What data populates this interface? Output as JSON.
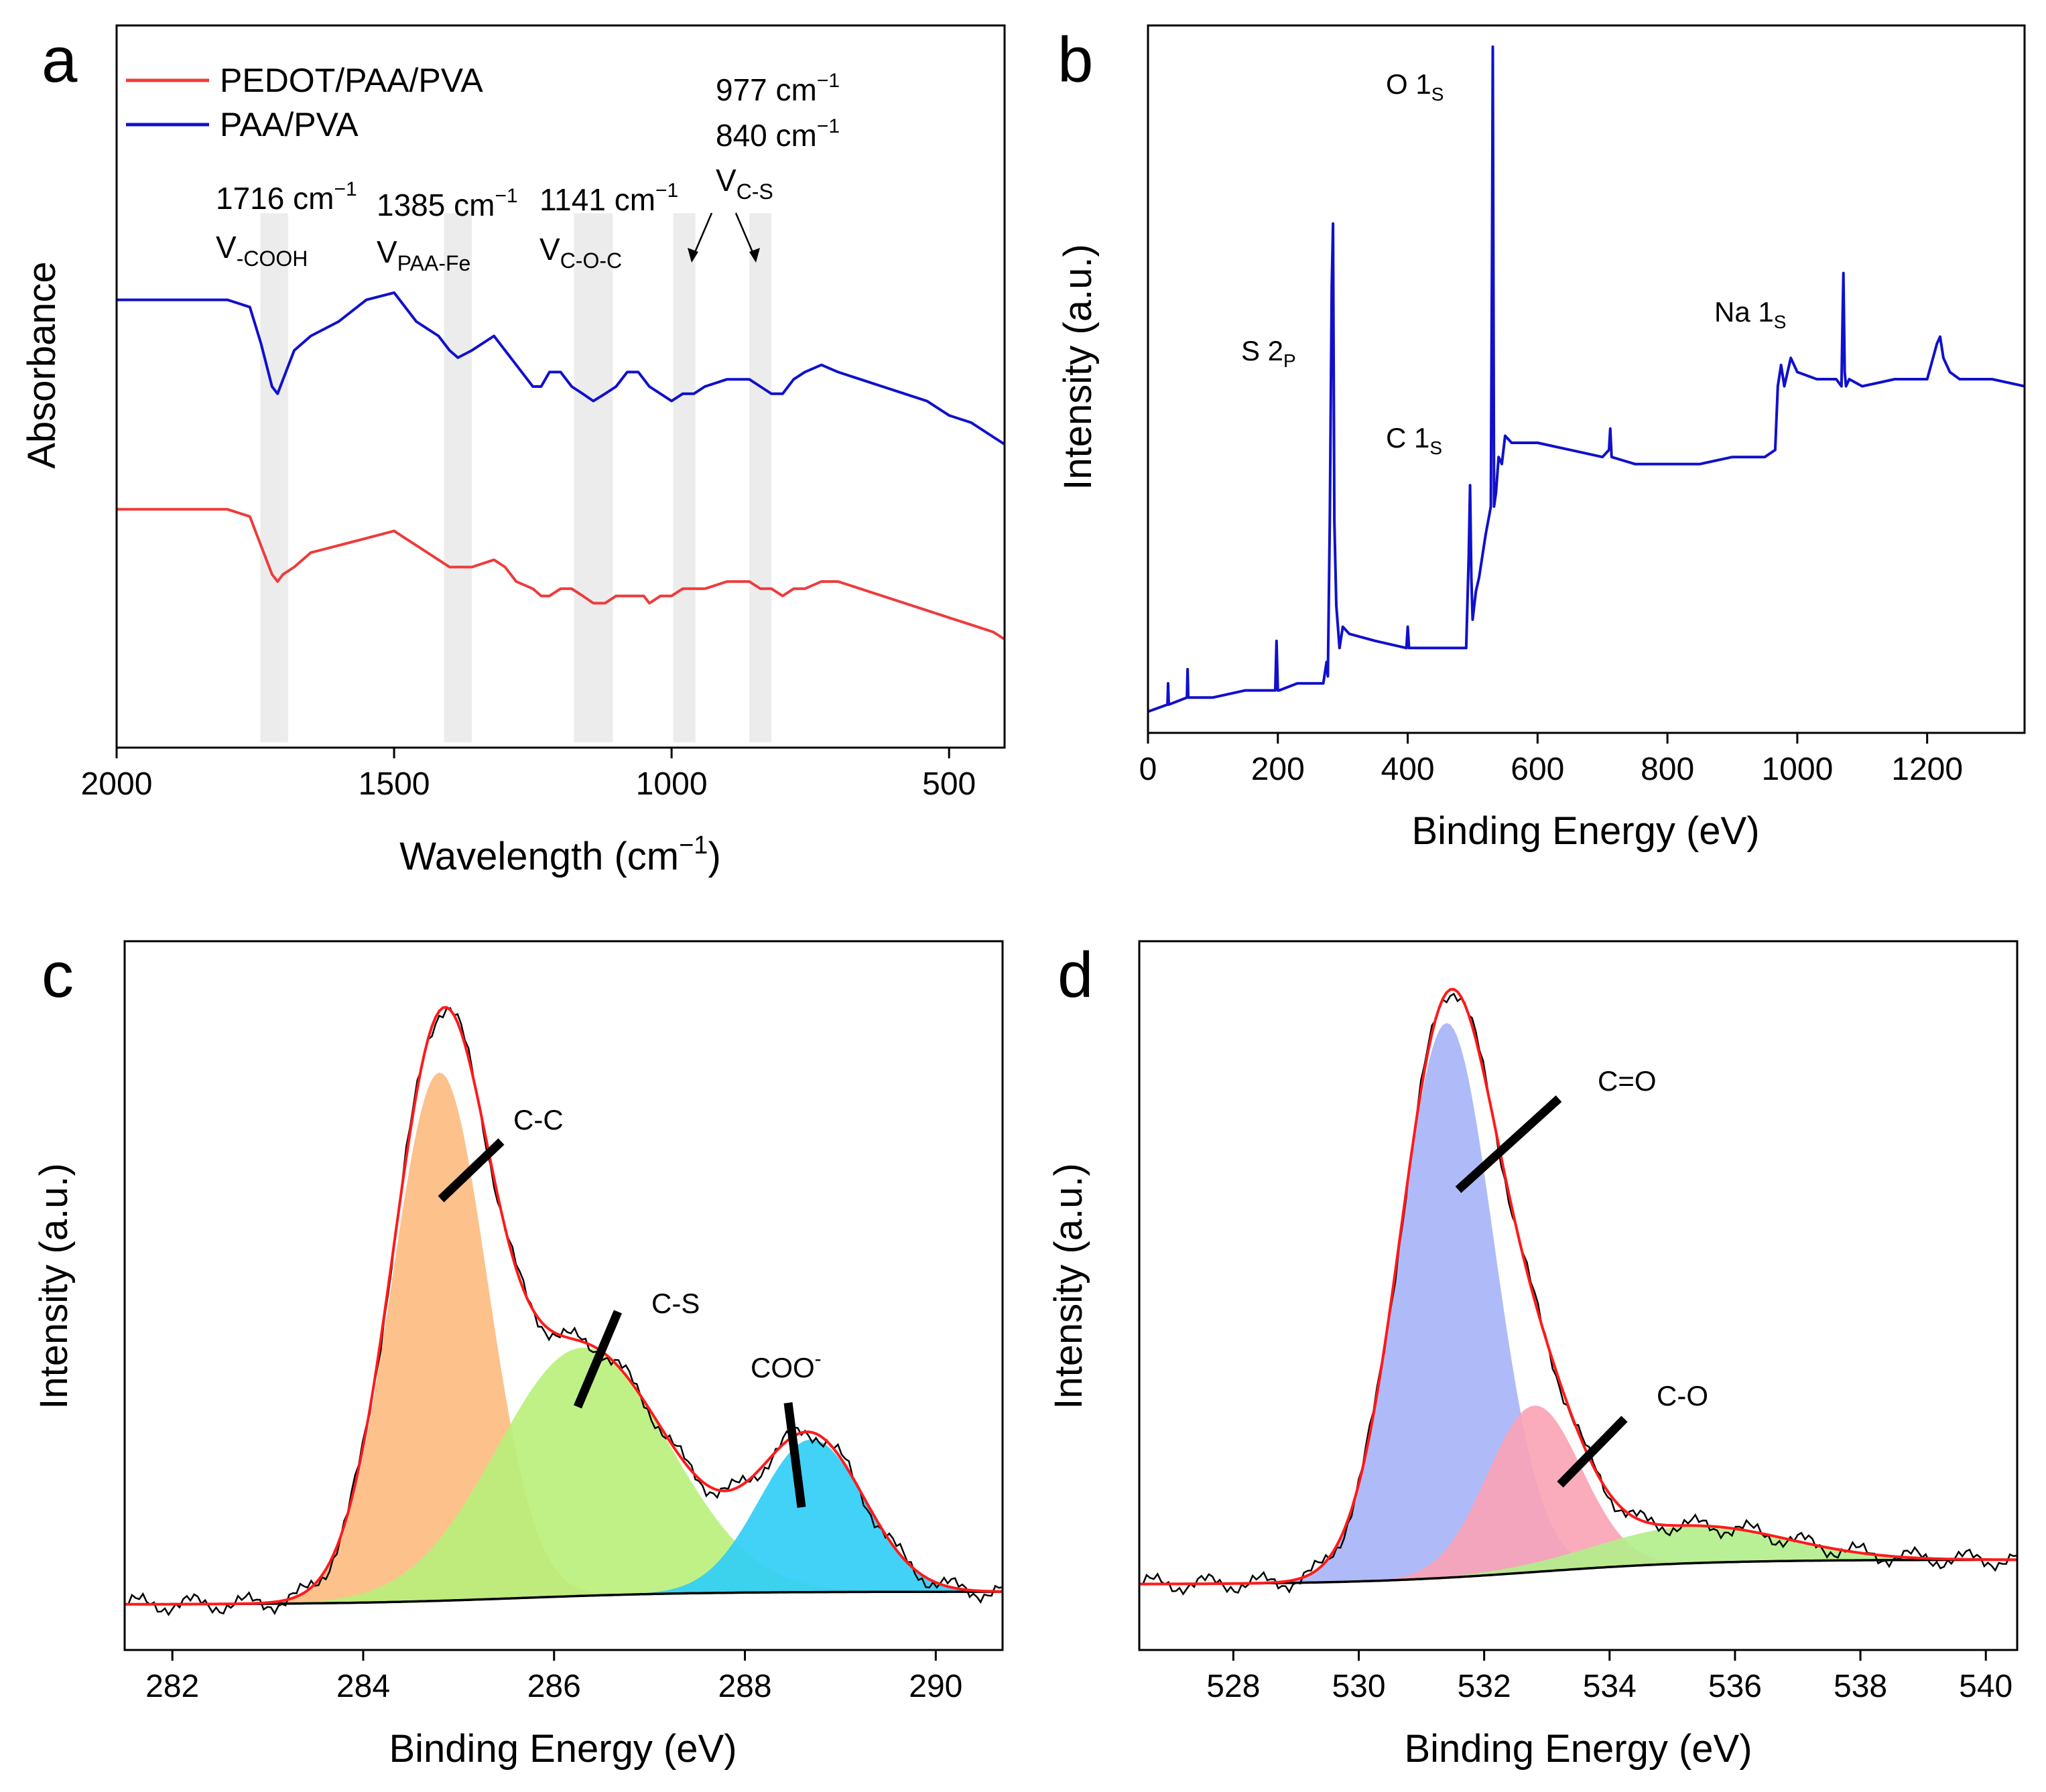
{
  "chart_data": [
    {
      "panel": "a",
      "type": "line",
      "xlabel": "Wavelength (cm",
      "xlabel_sup": "−1",
      "xlabel_tail": ")",
      "ylabel": "Absorbance",
      "xlim": [
        2000,
        400
      ],
      "ylim": [
        0,
        1
      ],
      "x_ticks": [
        "2000",
        "1500",
        "1000",
        "500"
      ],
      "x_tick_values": [
        2000,
        1500,
        1000,
        500
      ],
      "legend": [
        {
          "name": "PEDOT/PAA/PVA",
          "color": "#ee3b3b"
        },
        {
          "name": "PAA/PVA",
          "color": "#1010cc"
        }
      ],
      "bands": [
        {
          "center": 1716,
          "width": 50
        },
        {
          "center": 1385,
          "width": 50
        },
        {
          "center": 1141,
          "width": 70
        },
        {
          "center": 977,
          "width": 40
        },
        {
          "center": 840,
          "width": 40
        }
      ],
      "annotations": [
        {
          "id": "a1716",
          "line1": "1716 cm",
          "sup": "−1",
          "sym": "V",
          "sub": "-COOH"
        },
        {
          "id": "a1385",
          "line1": "1385 cm",
          "sup": "−1",
          "sym": "V",
          "sub": "PAA-Fe"
        },
        {
          "id": "a1141",
          "line1": "1141 cm",
          "sup": "−1",
          "sym": "V",
          "sub": "C-O-C"
        },
        {
          "id": "a977",
          "line1": "977 cm",
          "sup": "−1"
        },
        {
          "id": "a840",
          "line1": "840 cm",
          "sup": "−1",
          "sym": "V",
          "sub": "C-S"
        }
      ],
      "series": [
        {
          "name": "PAA/PVA",
          "color": "#1010cc",
          "x": [
            2000,
            1900,
            1800,
            1760,
            1740,
            1720,
            1710,
            1700,
            1680,
            1650,
            1600,
            1550,
            1500,
            1480,
            1460,
            1440,
            1420,
            1400,
            1385,
            1360,
            1320,
            1300,
            1280,
            1250,
            1235,
            1220,
            1200,
            1180,
            1160,
            1141,
            1120,
            1100,
            1080,
            1060,
            1050,
            1040,
            1020,
            1000,
            980,
            960,
            940,
            900,
            860,
            840,
            820,
            800,
            780,
            760,
            730,
            700,
            660,
            620,
            580,
            540,
            500,
            460,
            420,
            400
          ],
          "y": [
            0.62,
            0.62,
            0.62,
            0.61,
            0.56,
            0.5,
            0.49,
            0.51,
            0.55,
            0.57,
            0.59,
            0.62,
            0.63,
            0.61,
            0.59,
            0.58,
            0.57,
            0.55,
            0.54,
            0.55,
            0.57,
            0.55,
            0.53,
            0.5,
            0.5,
            0.52,
            0.52,
            0.5,
            0.49,
            0.48,
            0.49,
            0.5,
            0.52,
            0.52,
            0.51,
            0.5,
            0.49,
            0.48,
            0.49,
            0.49,
            0.5,
            0.51,
            0.51,
            0.5,
            0.49,
            0.49,
            0.51,
            0.52,
            0.53,
            0.52,
            0.51,
            0.5,
            0.49,
            0.48,
            0.46,
            0.45,
            0.43,
            0.42
          ]
        },
        {
          "name": "PEDOT/PAA/PVA",
          "color": "#ee3b3b",
          "x": [
            2000,
            1900,
            1800,
            1760,
            1740,
            1720,
            1710,
            1700,
            1680,
            1650,
            1600,
            1550,
            1500,
            1480,
            1460,
            1440,
            1420,
            1400,
            1385,
            1360,
            1320,
            1300,
            1280,
            1250,
            1235,
            1220,
            1200,
            1180,
            1160,
            1141,
            1120,
            1100,
            1080,
            1060,
            1050,
            1040,
            1020,
            1000,
            980,
            960,
            940,
            900,
            860,
            840,
            820,
            800,
            780,
            760,
            730,
            700,
            660,
            620,
            580,
            540,
            500,
            460,
            420,
            400
          ],
          "y": [
            0.33,
            0.33,
            0.33,
            0.32,
            0.28,
            0.24,
            0.23,
            0.24,
            0.25,
            0.27,
            0.28,
            0.29,
            0.3,
            0.29,
            0.28,
            0.27,
            0.26,
            0.25,
            0.25,
            0.25,
            0.26,
            0.25,
            0.23,
            0.22,
            0.21,
            0.21,
            0.22,
            0.22,
            0.21,
            0.2,
            0.2,
            0.21,
            0.21,
            0.21,
            0.21,
            0.2,
            0.21,
            0.21,
            0.22,
            0.22,
            0.22,
            0.23,
            0.23,
            0.22,
            0.22,
            0.21,
            0.22,
            0.22,
            0.23,
            0.23,
            0.22,
            0.21,
            0.2,
            0.19,
            0.18,
            0.17,
            0.16,
            0.15
          ]
        }
      ]
    },
    {
      "panel": "b",
      "type": "line",
      "xlabel": "Binding Energy (eV)",
      "ylabel": "Intensity (a.u.)",
      "xlim": [
        0,
        1350
      ],
      "ylim": [
        0,
        1
      ],
      "x_ticks": [
        "0",
        "200",
        "400",
        "600",
        "800",
        "1000",
        "1200"
      ],
      "x_tick_values": [
        0,
        200,
        400,
        600,
        800,
        1000,
        1200
      ],
      "peak_labels": [
        {
          "sym": "O 1",
          "sub": "S",
          "x": 531
        },
        {
          "sym": "C 1",
          "sub": "S",
          "x": 285
        },
        {
          "sym": "S 2",
          "sub": "P",
          "x": 285
        },
        {
          "sym": "Na 1",
          "sub": "S",
          "x": 1071
        }
      ],
      "series": [
        {
          "name": "survey",
          "color": "#1010cc",
          "x": [
            0,
            30,
            31,
            32,
            60,
            61,
            62,
            100,
            150,
            196,
            198,
            200,
            202,
            230,
            270,
            275,
            277,
            280,
            283,
            285,
            287,
            290,
            295,
            300,
            310,
            350,
            398,
            400,
            402,
            450,
            490,
            494,
            496,
            498,
            500,
            505,
            510,
            520,
            528,
            530,
            531,
            533,
            536,
            540,
            545,
            550,
            560,
            600,
            650,
            700,
            710,
            712,
            714,
            750,
            800,
            850,
            900,
            950,
            966,
            970,
            975,
            980,
            990,
            1000,
            1030,
            1060,
            1068,
            1070,
            1071,
            1073,
            1075,
            1080,
            1100,
            1150,
            1200,
            1215,
            1220,
            1225,
            1235,
            1250,
            1300,
            1350
          ],
          "y": [
            0.03,
            0.04,
            0.07,
            0.04,
            0.05,
            0.09,
            0.05,
            0.05,
            0.06,
            0.06,
            0.13,
            0.06,
            0.06,
            0.07,
            0.07,
            0.1,
            0.08,
            0.3,
            0.63,
            0.72,
            0.3,
            0.18,
            0.12,
            0.15,
            0.14,
            0.13,
            0.12,
            0.15,
            0.12,
            0.12,
            0.12,
            0.25,
            0.35,
            0.22,
            0.16,
            0.2,
            0.22,
            0.28,
            0.32,
            0.7,
            0.97,
            0.32,
            0.34,
            0.39,
            0.38,
            0.42,
            0.41,
            0.41,
            0.4,
            0.39,
            0.4,
            0.43,
            0.39,
            0.38,
            0.38,
            0.38,
            0.39,
            0.39,
            0.4,
            0.49,
            0.52,
            0.49,
            0.53,
            0.51,
            0.5,
            0.5,
            0.49,
            0.6,
            0.65,
            0.51,
            0.49,
            0.5,
            0.49,
            0.5,
            0.5,
            0.55,
            0.56,
            0.53,
            0.51,
            0.5,
            0.5,
            0.49
          ]
        }
      ]
    },
    {
      "panel": "c",
      "type": "area",
      "xlabel": "Binding Energy (eV)",
      "ylabel": "Intensity (a.u.)",
      "xlim": [
        281.5,
        290.7
      ],
      "ylim": [
        0,
        1
      ],
      "x_ticks": [
        "282",
        "284",
        "286",
        "288",
        "290"
      ],
      "x_tick_values": [
        282,
        284,
        286,
        288,
        290
      ],
      "background": {
        "start": 0.0,
        "end": 0.02
      },
      "components": [
        {
          "name": "C-C",
          "label": "C-C",
          "center": 284.8,
          "sigma": 0.5,
          "amp": 0.83,
          "color": "#fdba80"
        },
        {
          "name": "C-S",
          "label": "C-S",
          "center": 286.3,
          "sigma": 0.9,
          "amp": 0.39,
          "color": "#b8f07a"
        },
        {
          "name": "COO-",
          "label": "COO",
          "label_sup": "-",
          "center": 288.7,
          "sigma": 0.55,
          "amp": 0.24,
          "color": "#2dcdf7"
        }
      ],
      "fit_color": "#ff1a1a",
      "raw_color": "#000000"
    },
    {
      "panel": "d",
      "type": "area",
      "xlabel": "Binding Energy (eV)",
      "ylabel": "Intensity (a.u.)",
      "xlim": [
        526.5,
        540.5
      ],
      "ylim": [
        0,
        1
      ],
      "x_ticks": [
        "528",
        "530",
        "532",
        "534",
        "536",
        "538",
        "540"
      ],
      "x_tick_values": [
        528,
        530,
        532,
        534,
        536,
        538,
        540
      ],
      "background": {
        "start": 0.0,
        "end": 0.04
      },
      "components": [
        {
          "name": "C=O",
          "label": "C=O",
          "center": 531.4,
          "sigma": 0.75,
          "amp": 0.9,
          "color": "#a6b4f7"
        },
        {
          "name": "C-O",
          "label": "C-O",
          "center": 532.8,
          "sigma": 0.75,
          "amp": 0.27,
          "color": "#f9a3b5"
        },
        {
          "name": "adsorbed",
          "label": "",
          "center": 535.3,
          "sigma": 1.5,
          "amp": 0.06,
          "color": "#b3ee8a"
        }
      ],
      "fit_color": "#ff1a1a",
      "raw_color": "#000000"
    }
  ],
  "panel_letters": [
    "a",
    "b",
    "c",
    "d"
  ]
}
